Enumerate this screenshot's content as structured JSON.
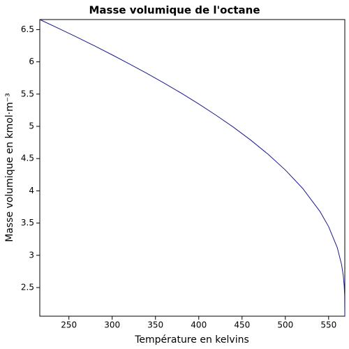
{
  "chart_data": {
    "type": "line",
    "title": "Masse volumique de l'octane",
    "x_label": "Température en kelvins",
    "y_label": "Masse volumique en kmol·m⁻³",
    "x": [
      216.38,
      240,
      260,
      280,
      300,
      320,
      340,
      360,
      380,
      400,
      420,
      440,
      460,
      480,
      500,
      520,
      540,
      550,
      560,
      565,
      567,
      568,
      568.5,
      568.7
    ],
    "series": [
      {
        "name": "octane",
        "color": "#1a1a8c",
        "values": [
          6.656,
          6.507,
          6.378,
          6.245,
          6.108,
          5.967,
          5.822,
          5.67,
          5.513,
          5.347,
          5.172,
          4.987,
          4.787,
          4.568,
          4.323,
          4.038,
          3.68,
          3.445,
          3.119,
          2.854,
          2.677,
          2.526,
          2.377,
          2.058
        ]
      }
    ],
    "xlim": [
      216.38,
      568.7
    ],
    "ylim": [
      2.056,
      6.656
    ],
    "xticks": [
      250,
      300,
      350,
      400,
      450,
      500,
      550
    ],
    "yticks": [
      2.5,
      3,
      3.5,
      4,
      4.5,
      5,
      5.5,
      6,
      6.5
    ]
  }
}
